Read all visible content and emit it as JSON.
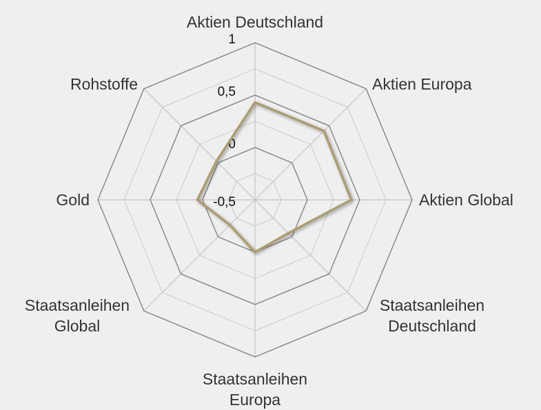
{
  "chart_data": {
    "type": "radar",
    "categories": [
      "Aktien Deutschland",
      "Aktien Europa",
      "Aktien Global",
      "Staatsanleihen Deutschland",
      "Staatsanleihen Europa",
      "Staatsanleihen Global",
      "Gold",
      "Rohstoffe"
    ],
    "series": [
      {
        "color": "#aa9c72",
        "values": [
          0.43,
          0.43,
          0.42,
          -0.05,
          0.0,
          -0.16,
          0.05,
          0.02
        ]
      }
    ],
    "ylim": [
      -0.5,
      1
    ],
    "yticks": [
      {
        "value": -0.5,
        "label": "-0,5"
      },
      0,
      {
        "value": 0.5,
        "label": "0,5"
      },
      1
    ],
    "grid": true
  }
}
